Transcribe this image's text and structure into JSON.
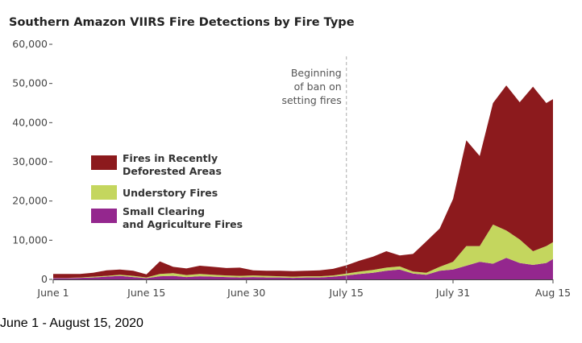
{
  "chart_data": {
    "type": "area",
    "stacked": true,
    "title": "Southern Amazon VIIRS Fire Detections by Fire Type",
    "caption": "June 1 - August 15, 2020",
    "xlabel": "",
    "ylabel": "",
    "x_start": "2020-06-01",
    "x_end": "2020-08-15",
    "ylim": [
      0,
      60000
    ],
    "yticks": [
      0,
      10000,
      20000,
      30000,
      40000,
      50000,
      60000
    ],
    "ytick_labels": [
      "0",
      "10,000",
      "20,000",
      "30,000",
      "40,000",
      "50,000",
      "60,000"
    ],
    "xticks": [
      {
        "date": "2020-06-01",
        "label": "June 1"
      },
      {
        "date": "2020-06-15",
        "label": "June 15"
      },
      {
        "date": "2020-06-30",
        "label": "June 30"
      },
      {
        "date": "2020-07-15",
        "label": "July 15"
      },
      {
        "date": "2020-07-31",
        "label": "July 31"
      },
      {
        "date": "2020-08-15",
        "label": "Aug 15"
      }
    ],
    "annotation": {
      "date": "2020-07-15",
      "lines": [
        "Beginning",
        "of ban on",
        "setting fires"
      ]
    },
    "legend_position": "center-left",
    "x": [
      "2020-06-01",
      "2020-06-03",
      "2020-06-05",
      "2020-06-07",
      "2020-06-09",
      "2020-06-11",
      "2020-06-13",
      "2020-06-15",
      "2020-06-17",
      "2020-06-19",
      "2020-06-21",
      "2020-06-23",
      "2020-06-25",
      "2020-06-27",
      "2020-06-29",
      "2020-07-01",
      "2020-07-03",
      "2020-07-05",
      "2020-07-07",
      "2020-07-09",
      "2020-07-11",
      "2020-07-13",
      "2020-07-15",
      "2020-07-17",
      "2020-07-19",
      "2020-07-21",
      "2020-07-23",
      "2020-07-25",
      "2020-07-27",
      "2020-07-29",
      "2020-07-31",
      "2020-08-02",
      "2020-08-04",
      "2020-08-06",
      "2020-08-08",
      "2020-08-10",
      "2020-08-12",
      "2020-08-14",
      "2020-08-15"
    ],
    "series": [
      {
        "name": "Small Clearing and Agriculture Fires",
        "color": "#94278e",
        "values": [
          300,
          300,
          400,
          500,
          700,
          900,
          600,
          300,
          800,
          900,
          600,
          800,
          700,
          600,
          500,
          600,
          500,
          500,
          400,
          500,
          500,
          700,
          1000,
          1400,
          1700,
          2200,
          2500,
          1500,
          1200,
          2200,
          2500,
          3500,
          4500,
          4000,
          5500,
          4200,
          3700,
          4200,
          5200
        ]
      },
      {
        "name": "Understory Fires",
        "color": "#c4d65e",
        "values": [
          100,
          100,
          100,
          200,
          200,
          300,
          300,
          200,
          600,
          700,
          500,
          600,
          500,
          400,
          400,
          400,
          400,
          300,
          300,
          300,
          300,
          300,
          500,
          600,
          700,
          800,
          800,
          500,
          500,
          1000,
          2000,
          5000,
          4000,
          10000,
          7000,
          6000,
          3500,
          4300,
          4300
        ]
      },
      {
        "name": "Fires in Recently Deforested Areas",
        "color": "#8c1a1d",
        "values": [
          1000,
          1000,
          900,
          1000,
          1400,
          1300,
          1300,
          800,
          3200,
          1600,
          1700,
          2100,
          2000,
          1900,
          2100,
          1300,
          1300,
          1400,
          1400,
          1400,
          1500,
          1700,
          2100,
          2800,
          3400,
          4200,
          2800,
          4500,
          8000,
          9800,
          16000,
          27000,
          23000,
          31000,
          37000,
          35000,
          42000,
          36500,
          36500
        ]
      }
    ]
  }
}
